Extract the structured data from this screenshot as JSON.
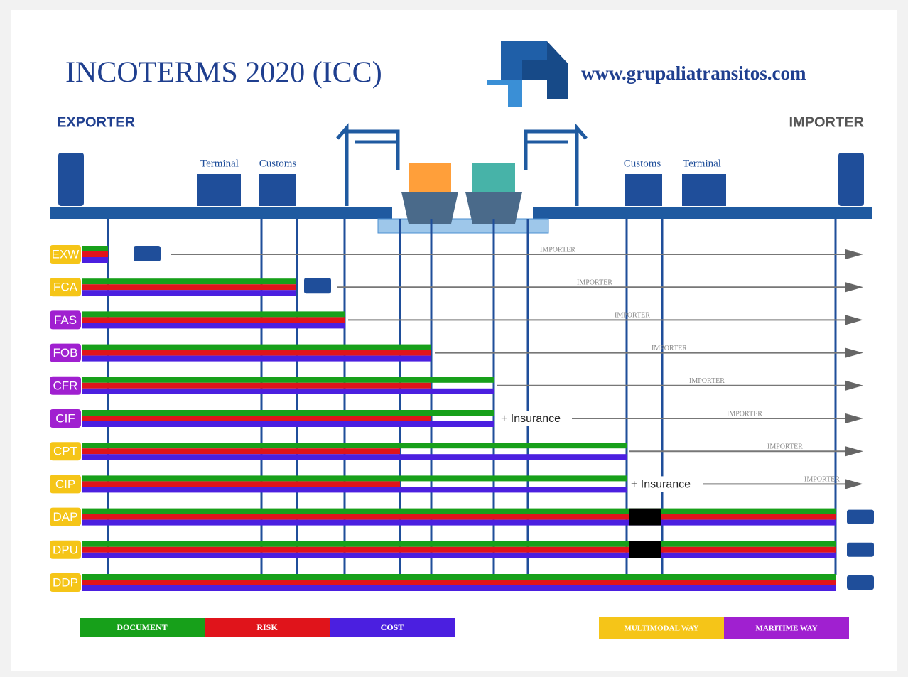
{
  "header": {
    "title": "INCOTERMS 2020 (ICC)",
    "website": "www.grupaliatransitos.com"
  },
  "parties": {
    "exporter": "EXPORTER",
    "importer": "IMPORTER"
  },
  "locations": [
    "Terminal",
    "Customs",
    "Customs",
    "Terminal"
  ],
  "terms": [
    {
      "code": "EXW",
      "importer_label": "IMPORTER"
    },
    {
      "code": "FCA",
      "importer_label": "IMPORTER"
    },
    {
      "code": "FAS",
      "importer_label": "IMPORTER"
    },
    {
      "code": "FOB",
      "importer_label": "IMPORTER"
    },
    {
      "code": "CFR",
      "importer_label": "IMPORTER"
    },
    {
      "code": "CIF",
      "importer_label": "IMPORTER",
      "note": "+ Insurance"
    },
    {
      "code": "CPT",
      "importer_label": "IMPORTER"
    },
    {
      "code": "CIP",
      "importer_label": "IMPORTER",
      "note": "+ Insurance"
    },
    {
      "code": "DAP"
    },
    {
      "code": "DPU"
    },
    {
      "code": "DDP"
    }
  ],
  "legend": {
    "flows": [
      "DOCUMENT",
      "RISK",
      "COST"
    ],
    "modes": [
      "MULTIMODAL WAY",
      "MARITIME WAY"
    ]
  }
}
